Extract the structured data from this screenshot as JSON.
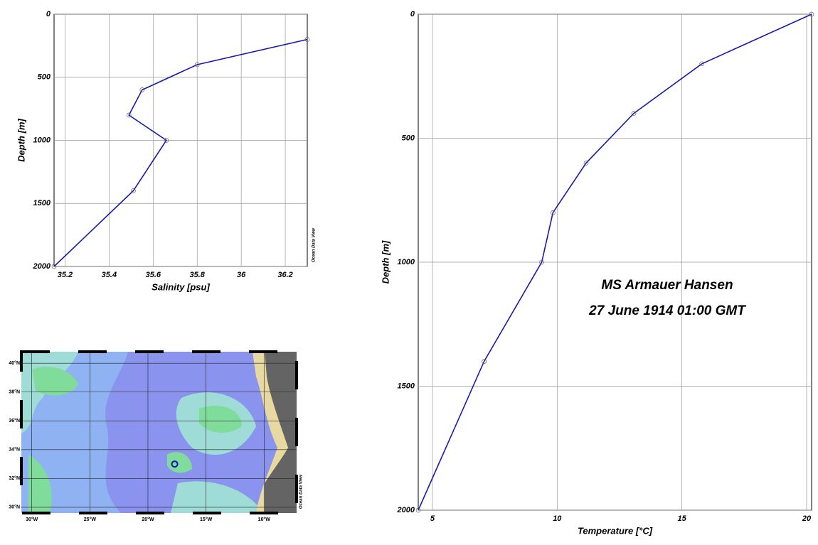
{
  "chart_data": [
    {
      "type": "line",
      "x_label": "Salinity [psu]",
      "y_label": "Depth [m]",
      "xlim": [
        35.15,
        36.3
      ],
      "ylim": [
        0,
        2000
      ],
      "y_inverted": true,
      "xticks": [
        35.2,
        35.4,
        35.6,
        35.8,
        36,
        36.2
      ],
      "yticks": [
        0,
        500,
        1000,
        1500,
        2000
      ],
      "grid": true,
      "watermark": "Ocean Data View",
      "series": [
        {
          "color": "#1a1aa8",
          "x": [
            36.3,
            35.8,
            35.55,
            35.49,
            35.66,
            35.51,
            35.15
          ],
          "y": [
            200,
            400,
            600,
            800,
            1000,
            1400,
            2000
          ]
        }
      ]
    },
    {
      "type": "line",
      "x_label": "Temperature [°C]",
      "y_label": "Depth [m]",
      "xlim": [
        4.43,
        20.2
      ],
      "ylim": [
        0,
        2000
      ],
      "y_inverted": true,
      "xticks": [
        5,
        10,
        15,
        20
      ],
      "yticks": [
        0,
        500,
        1000,
        1500,
        2000
      ],
      "grid": true,
      "annotations": [
        "MS Armauer Hansen",
        "27 June 1914 01:00 GMT"
      ],
      "series": [
        {
          "color": "#1a1aa8",
          "x": [
            20.2,
            15.8,
            13.07,
            11.16,
            9.83,
            9.38,
            7.07,
            4.43
          ],
          "y": [
            0,
            200,
            400,
            600,
            800,
            1000,
            1400,
            2000
          ]
        }
      ]
    }
  ],
  "map": {
    "lonlim": [
      -30.9,
      -7.2
    ],
    "latlim": [
      29.6,
      40.8
    ],
    "lonticks": [
      {
        "value": -30,
        "label": "30°W"
      },
      {
        "value": -25,
        "label": "25°W"
      },
      {
        "value": -20,
        "label": "20°W"
      },
      {
        "value": -15,
        "label": "15°W"
      },
      {
        "value": -10,
        "label": "10°W"
      }
    ],
    "latticks": [
      {
        "value": 40,
        "label": "40°N"
      },
      {
        "value": 38,
        "label": "38°N"
      },
      {
        "value": 36,
        "label": "36°N"
      },
      {
        "value": 34,
        "label": "34°N"
      },
      {
        "value": 32,
        "label": "32°N"
      },
      {
        "value": 30,
        "label": "30°N"
      }
    ],
    "station": {
      "lon": -17.7,
      "lat": 33,
      "color": "#1010c0"
    },
    "watermark": "Ocean Data View"
  }
}
